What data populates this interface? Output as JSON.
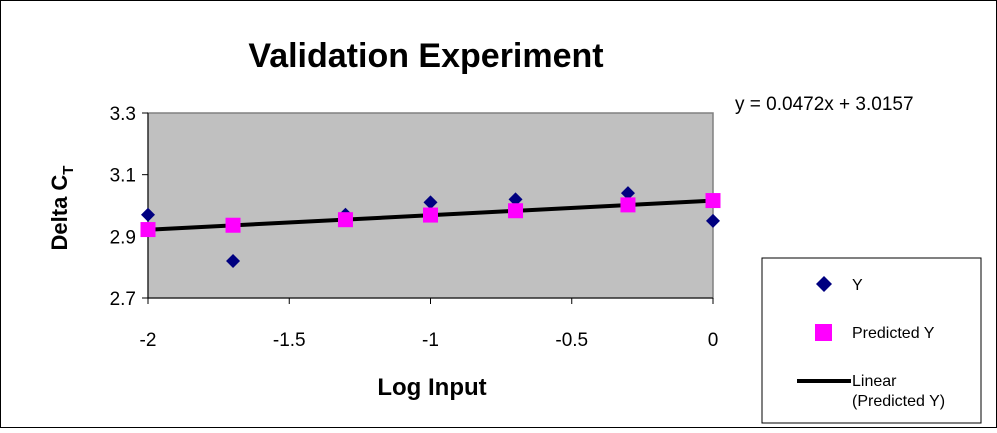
{
  "chart_data": {
    "type": "scatter",
    "title": "Validation Experiment",
    "xlabel": "Log Input",
    "ylabel": "Delta C",
    "ylabel_subscript": "T",
    "xlim": [
      -2,
      0
    ],
    "ylim": [
      2.7,
      3.3
    ],
    "x_ticks": [
      -2,
      -1.5,
      -1,
      -0.5,
      0
    ],
    "x_tick_labels": [
      "-2",
      "-1.5",
      "-1",
      "-0.5",
      "0"
    ],
    "y_ticks": [
      2.7,
      2.9,
      3.1,
      3.3
    ],
    "y_tick_labels": [
      "2.7",
      "2.9",
      "3.1",
      "3.3"
    ],
    "grid": false,
    "plot_background": "#c0c0c0",
    "legend_position": "bottom-right",
    "equation": "y = 0.0472x + 3.0157",
    "series": [
      {
        "name": "Y",
        "marker": "diamond",
        "color": "#000080",
        "x": [
          -2,
          -1.699,
          -1.301,
          -1,
          -0.699,
          -0.301,
          0
        ],
        "y": [
          2.97,
          2.82,
          2.97,
          3.01,
          3.02,
          3.04,
          2.95
        ]
      },
      {
        "name": "Predicted Y",
        "marker": "square",
        "color": "#ff00ff",
        "x": [
          -2,
          -1.699,
          -1.301,
          -1,
          -0.699,
          -0.301,
          0
        ],
        "y": [
          2.922,
          2.936,
          2.954,
          2.969,
          2.983,
          3.002,
          3.016
        ]
      }
    ],
    "trendline": {
      "name": "Linear (Predicted Y)",
      "slope": 0.0472,
      "intercept": 3.0157,
      "color": "#000000"
    }
  }
}
